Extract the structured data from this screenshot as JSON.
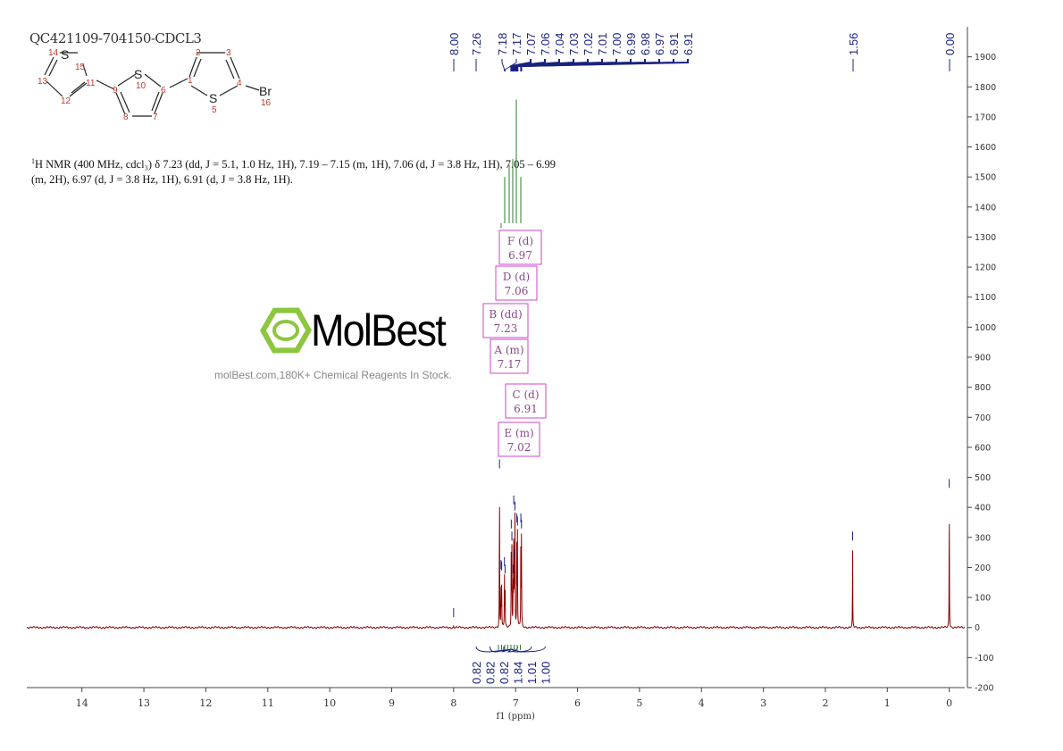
{
  "title": "QC421109-704150-CDCL3",
  "nmr_text": "H NMR (400 MHz, cdcl₃) δ 7.23 (dd, J = 5.1, 1.0 Hz, 1H), 7.19 – 7.15 (m, 1H), 7.06 (d, J = 3.8 Hz, 1H), 7.05 – 6.99 (m, 2H), 6.97 (d, J = 3.8 Hz, 1H), 6.91 (d, J = 3.8 Hz, 1H).",
  "nmr_sup": "1",
  "molecule": {
    "atoms": [
      "14",
      "S",
      "15",
      "13",
      "11",
      "12",
      "9",
      "S",
      "10",
      "8",
      "7",
      "6",
      "1",
      "2",
      "3",
      "4",
      "S",
      "5",
      "Br",
      "16"
    ]
  },
  "watermark": {
    "logo": "MolBest",
    "tagline": "molBest.com,180K+ Chemical Reagents In Stock.",
    "color": "#8dc63f"
  },
  "chart_data": {
    "type": "line",
    "xlabel": "f1 (ppm)",
    "xlim": [
      14.89,
      -0.25
    ],
    "ylim": [
      -200,
      2000
    ],
    "x_ticks": [
      14,
      13,
      12,
      11,
      10,
      9,
      8,
      7,
      6,
      5,
      4,
      3,
      2,
      1,
      0
    ],
    "y_ticks": [
      -200,
      -100,
      0,
      100,
      200,
      300,
      400,
      500,
      600,
      700,
      800,
      900,
      1000,
      1100,
      1200,
      1300,
      1400,
      1500,
      1600,
      1700,
      1800,
      1900
    ],
    "spectrum_color": "#8b0000",
    "peaks": [
      {
        "ppm": 8.0,
        "height": 5
      },
      {
        "ppm": 7.26,
        "height": 500
      },
      {
        "ppm": 7.235,
        "height": 165
      },
      {
        "ppm": 7.225,
        "height": 160
      },
      {
        "ppm": 7.18,
        "height": 175
      },
      {
        "ppm": 7.17,
        "height": 150
      },
      {
        "ppm": 7.07,
        "height": 300
      },
      {
        "ppm": 7.06,
        "height": 260
      },
      {
        "ppm": 7.04,
        "height": 150
      },
      {
        "ppm": 7.03,
        "height": 380
      },
      {
        "ppm": 7.02,
        "height": 200
      },
      {
        "ppm": 7.01,
        "height": 360
      },
      {
        "ppm": 6.98,
        "height": 320
      },
      {
        "ppm": 6.97,
        "height": 310
      },
      {
        "ppm": 6.915,
        "height": 320
      },
      {
        "ppm": 6.905,
        "height": 300
      },
      {
        "ppm": 1.56,
        "height": 260
      },
      {
        "ppm": 0.0,
        "height": 435
      }
    ],
    "peak_labels": [
      "8.00",
      "7.26",
      "7.18",
      "7.17",
      "7.07",
      "7.06",
      "7.04",
      "7.03",
      "7.02",
      "7.01",
      "7.00",
      "6.99",
      "6.98",
      "6.97",
      "6.91",
      "6.91",
      "1.56",
      "0.00"
    ],
    "integrals": [
      "0.82",
      "0.82",
      "0.82",
      "1.84",
      "1.01",
      "1.00"
    ],
    "multiplets": [
      {
        "label": "F (d)",
        "shift": "6.97"
      },
      {
        "label": "D (d)",
        "shift": "7.06"
      },
      {
        "label": "B (dd)",
        "shift": "7.23"
      },
      {
        "label": "A (m)",
        "shift": "7.17"
      },
      {
        "label": "C (d)",
        "shift": "6.91"
      },
      {
        "label": "E (m)",
        "shift": "7.02"
      }
    ]
  }
}
